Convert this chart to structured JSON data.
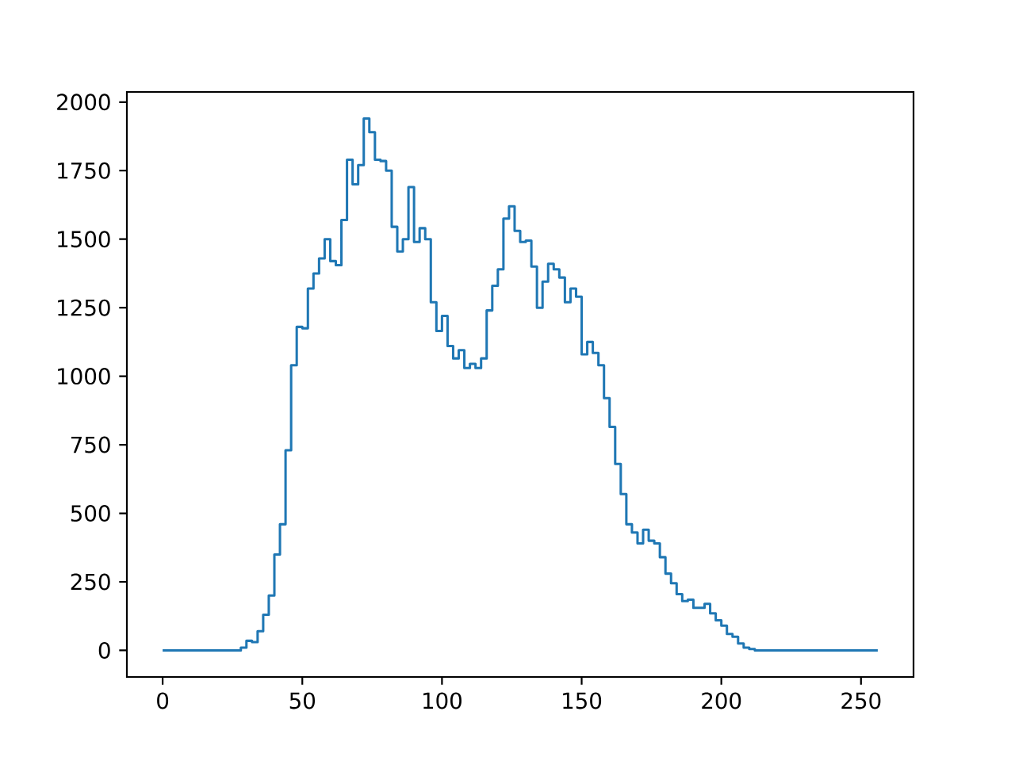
{
  "chart_data": {
    "type": "step",
    "color": "#1f77b4",
    "x": [
      0,
      2,
      4,
      6,
      8,
      10,
      12,
      14,
      16,
      18,
      20,
      22,
      24,
      26,
      28,
      30,
      32,
      34,
      36,
      38,
      40,
      42,
      44,
      46,
      48,
      50,
      52,
      54,
      56,
      58,
      60,
      62,
      64,
      66,
      68,
      70,
      72,
      74,
      76,
      78,
      80,
      82,
      84,
      86,
      88,
      90,
      92,
      94,
      96,
      98,
      100,
      102,
      104,
      106,
      108,
      110,
      112,
      114,
      116,
      118,
      120,
      122,
      124,
      126,
      128,
      130,
      132,
      134,
      136,
      138,
      140,
      142,
      144,
      146,
      148,
      150,
      152,
      154,
      156,
      158,
      160,
      162,
      164,
      166,
      168,
      170,
      172,
      174,
      176,
      178,
      180,
      182,
      184,
      186,
      188,
      190,
      192,
      194,
      196,
      198,
      200,
      202,
      204,
      206,
      208,
      210,
      212,
      214,
      216,
      218,
      220,
      222,
      224,
      226,
      228,
      230,
      232,
      234,
      236,
      238,
      240,
      242,
      244,
      246,
      248,
      250,
      252,
      254,
      256
    ],
    "values": [
      0,
      0,
      0,
      0,
      0,
      0,
      0,
      0,
      0,
      0,
      0,
      0,
      0,
      0,
      0,
      10,
      35,
      30,
      70,
      130,
      200,
      350,
      460,
      730,
      1040,
      1180,
      1175,
      1320,
      1375,
      1430,
      1500,
      1420,
      1405,
      1570,
      1790,
      1700,
      1770,
      1940,
      1890,
      1790,
      1785,
      1750,
      1545,
      1455,
      1500,
      1690,
      1490,
      1540,
      1500,
      1270,
      1165,
      1220,
      1110,
      1065,
      1095,
      1030,
      1045,
      1030,
      1065,
      1240,
      1330,
      1390,
      1575,
      1620,
      1530,
      1490,
      1495,
      1400,
      1250,
      1345,
      1410,
      1390,
      1360,
      1270,
      1320,
      1290,
      1080,
      1125,
      1085,
      1040,
      920,
      815,
      680,
      570,
      460,
      430,
      390,
      440,
      400,
      390,
      340,
      280,
      245,
      205,
      180,
      185,
      155,
      155,
      170,
      135,
      110,
      90,
      60,
      50,
      25,
      10,
      5,
      0,
      0,
      0,
      0,
      0,
      0,
      0,
      0,
      0,
      0,
      0,
      0,
      0,
      0,
      0,
      0,
      0,
      0,
      0,
      0,
      0,
      0
    ],
    "xlim": [
      -12.8,
      268.8
    ],
    "ylim": [
      -97,
      2037
    ],
    "xticks": [
      0,
      50,
      100,
      150,
      200,
      250
    ],
    "yticks": [
      0,
      250,
      500,
      750,
      1000,
      1250,
      1500,
      1750,
      2000
    ]
  }
}
